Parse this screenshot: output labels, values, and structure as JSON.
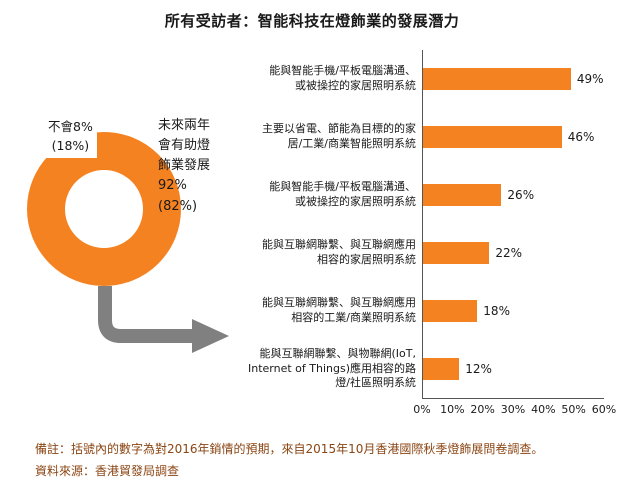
{
  "title": "所有受訪者：智能科技在燈飾業的發展潛力",
  "accent_color": "#F58220",
  "arrow_color": "#808080",
  "donut": {
    "no_label": "不會8%\n(18%)",
    "yes_label": "未來兩年\n會有助燈\n飾業發展\n92%\n(82%)"
  },
  "chart_data": [
    {
      "type": "pie",
      "labels": [
        "未來兩年會有助燈飾業發展",
        "不會"
      ],
      "values": [
        92,
        8
      ],
      "paren_values_2016_forecast": [
        82,
        18
      ],
      "colors": [
        "#F58220",
        "#FFFFFF"
      ]
    },
    {
      "type": "bar",
      "orientation": "horizontal",
      "title": "所有受訪者：智能科技在燈飾業的發展潛力",
      "categories": [
        [
          "能與智能手機/平板電腦溝通、",
          "或被操控的家居照明系統"
        ],
        [
          "主要以省電、節能為目標的的家",
          "居/工業/商業智能照明系統"
        ],
        [
          "能與智能手機/平板電腦溝通、",
          "或被操控的家居照明系統"
        ],
        [
          "能與互聯網聯繫、與互聯網應用",
          "相容的家居照明系統"
        ],
        [
          "能與互聯網聯繫、與互聯網應用",
          "相容的工業/商業照明系統"
        ],
        [
          "能與互聯網聯繫、與物聯網(IoT,",
          "Internet of Things)應用相容的路",
          "燈/社區照明系統"
        ]
      ],
      "values": [
        49,
        46,
        26,
        22,
        18,
        12
      ],
      "value_labels": [
        "49%",
        "46%",
        "26%",
        "22%",
        "18%",
        "12%"
      ],
      "xlim": [
        0,
        60
      ],
      "x_ticks": [
        "0%",
        "10%",
        "20%",
        "30%",
        "40%",
        "50%",
        "60%"
      ],
      "bar_color": "#F58220",
      "grid": false,
      "legend": "none"
    }
  ],
  "notes": {
    "line1": "備註：括號內的數字為對2016年銷情的預期，來自2015年10月香港國際秋季燈飾展問卷調查。",
    "line2": "資料來源：香港貿發局調查"
  }
}
